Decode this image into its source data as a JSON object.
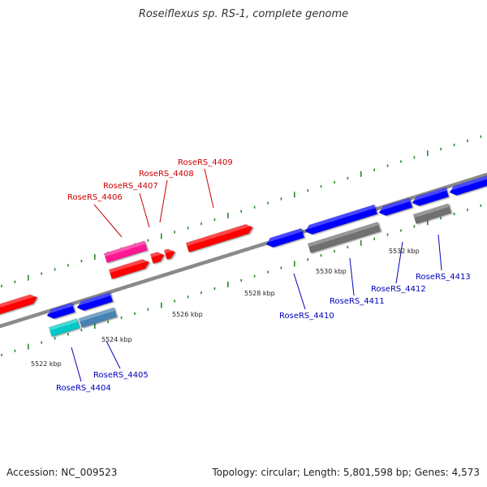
{
  "title": "Roseiflexus sp. RS-1, complete genome",
  "footer": {
    "accession": "Accession: NC_009523",
    "summary": "Topology: circular; Length: 5,801,598 bp; Genes: 4,573"
  },
  "colors": {
    "forward_gene": "#ff0000",
    "reverse_gene": "#0000ff",
    "forward_rna": "#ff1493",
    "reverse_rna": "#00c8c8",
    "reverse_other": "#4682b4",
    "pseudogene": "#707070",
    "backbone": "#8a8a8a",
    "tick": "#2a8a2a",
    "forward_label": "#cc0000",
    "reverse_label": "#0000bb"
  },
  "tick_labels": [
    "5522 kbp",
    "5524 kbp",
    "5526 kbp",
    "5528 kbp",
    "5530 kbp",
    "5532 kbp"
  ],
  "forward_labels": [
    "RoseRS_4406",
    "RoseRS_4407",
    "RoseRS_4408",
    "RoseRS_4409"
  ],
  "reverse_labels": [
    "RoseRS_4404",
    "RoseRS_4405",
    "RoseRS_4410",
    "RoseRS_4411",
    "RoseRS_4412",
    "RoseRS_4413"
  ]
}
